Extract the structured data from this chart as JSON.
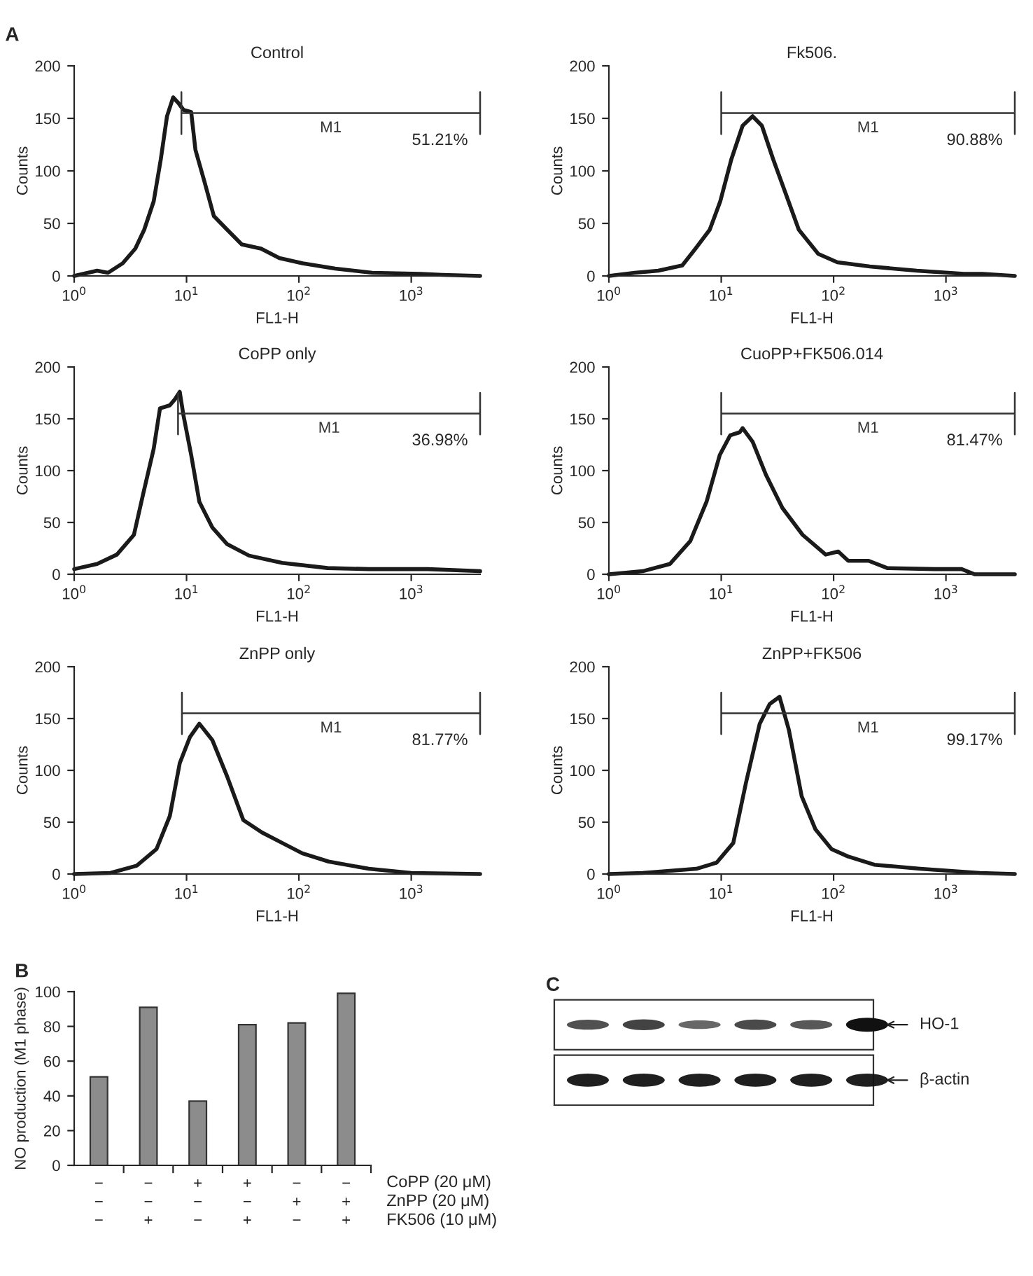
{
  "chart_data": [
    {
      "type": "line",
      "title": "Control",
      "xlabel": "FL1-H",
      "ylabel": "Counts",
      "log": "x",
      "xlim": [
        1,
        4100
      ],
      "xticks": [
        {
          "value": 1,
          "label": "10$^{0}$"
        },
        {
          "value": 10,
          "label": "10$^{1}$"
        },
        {
          "value": 100,
          "label": "10$^{2}$"
        },
        {
          "value": 1000,
          "label": "10$^{3}$"
        }
      ],
      "ylim": [
        0,
        200
      ],
      "yticks": [
        0,
        50,
        100,
        150,
        200
      ],
      "grid": false,
      "marker": "none",
      "line_style": "solid",
      "series": [
        {
          "color": "#1a1a1a",
          "x": [
            1,
            1.6,
            2.0,
            2.7,
            3.5,
            4.2,
            5.1,
            5.9,
            6.7,
            7.6,
            8.4,
            9.4,
            11,
            12,
            14.5,
            17.5,
            23,
            31,
            46,
            67,
            108,
            210,
            450,
            1200,
            1900,
            4100
          ],
          "values": [
            0,
            5,
            3,
            12,
            26,
            44,
            71,
            111,
            152,
            170,
            165,
            158,
            156,
            120,
            89,
            57,
            44,
            30,
            26,
            17,
            12,
            7,
            3,
            2,
            1,
            0
          ]
        },
        {
          "name": "M1",
          "color": "#333333",
          "x": [
            9,
            9,
            9,
            4100,
            4100,
            4100
          ],
          "values": [
            135,
            175,
            155,
            155,
            175,
            135
          ]
        }
      ],
      "annotations": [
        "A",
        "51.21%"
      ]
    },
    {
      "type": "line",
      "title": "Fk506.",
      "xlabel": "FL1-H",
      "ylabel": "Counts",
      "log": "x",
      "xlim": [
        1,
        4100
      ],
      "xticks": [
        {
          "value": 1,
          "label": "10$^{0}$"
        },
        {
          "value": 10,
          "label": "10$^{1}$"
        },
        {
          "value": 100,
          "label": "10$^{2}$"
        },
        {
          "value": 1000,
          "label": "10$^{3}$"
        }
      ],
      "ylim": [
        0,
        200
      ],
      "yticks": [
        0,
        50,
        100,
        150,
        200
      ],
      "grid": false,
      "marker": "none",
      "line_style": "solid",
      "series": [
        {
          "color": "#1a1a1a",
          "x": [
            1,
            1.7,
            2.75,
            4.5,
            5.9,
            7.9,
            9.8,
            12.3,
            15.5,
            19,
            23,
            29,
            37,
            49,
            73,
            108,
            210,
            550,
            1450,
            2100,
            4100
          ],
          "values": [
            0,
            3,
            5,
            10,
            26,
            44,
            71,
            111,
            143,
            152,
            143,
            111,
            80,
            44,
            21,
            13,
            9,
            5,
            2,
            2,
            0
          ]
        },
        {
          "name": "M1",
          "color": "#333333",
          "x": [
            10,
            10,
            10,
            4100,
            4100,
            4100
          ],
          "values": [
            135,
            175,
            155,
            155,
            175,
            135
          ]
        }
      ],
      "annotations": [
        "90.88%"
      ]
    },
    {
      "type": "line",
      "title": "CoPP only",
      "xlabel": "FL1-H",
      "ylabel": "Counts",
      "log": "x",
      "xlim": [
        1,
        4100
      ],
      "xticks": [
        {
          "value": 1,
          "label": "10$^{0}$"
        },
        {
          "value": 10,
          "label": "10$^{1}$"
        },
        {
          "value": 100,
          "label": "10$^{2}$"
        },
        {
          "value": 1000,
          "label": "10$^{3}$"
        }
      ],
      "ylim": [
        0,
        200
      ],
      "yticks": [
        0,
        50,
        100,
        150,
        200
      ],
      "grid": false,
      "marker": "none",
      "line_style": "solid",
      "series": [
        {
          "color": "#1a1a1a",
          "x": [
            1,
            1.6,
            2.4,
            3.4,
            4.1,
            5.1,
            5.8,
            7.1,
            7.9,
            8.7,
            9.4,
            11,
            13,
            17,
            23,
            36,
            71,
            180,
            420,
            1400,
            4100
          ],
          "values": [
            5,
            10,
            19,
            38,
            77,
            121,
            160,
            163,
            169,
            176,
            153,
            115,
            70,
            45,
            29,
            18,
            11,
            6,
            5,
            5,
            3
          ]
        },
        {
          "name": "M1",
          "color": "#333333",
          "x": [
            8.4,
            8.4,
            8.4,
            4100,
            4100,
            4100
          ],
          "values": [
            135,
            175,
            155,
            155,
            175,
            135
          ]
        }
      ],
      "annotations": [
        "36.98%"
      ]
    },
    {
      "type": "line",
      "title": "CuoPP+FK506.014",
      "xlabel": "FL1-H",
      "ylabel": "Counts",
      "log": "x",
      "xlim": [
        1,
        4100
      ],
      "xticks": [
        {
          "value": 1,
          "label": "10$^{0}$"
        },
        {
          "value": 10,
          "label": "10$^{1}$"
        },
        {
          "value": 100,
          "label": "10$^{2}$"
        },
        {
          "value": 1000,
          "label": "10$^{3}$"
        }
      ],
      "ylim": [
        0,
        200
      ],
      "yticks": [
        0,
        50,
        100,
        150,
        200
      ],
      "grid": false,
      "marker": "none",
      "line_style": "solid",
      "series": [
        {
          "color": "#1a1a1a",
          "x": [
            1,
            2.0,
            3.5,
            5.3,
            7.4,
            9.7,
            12,
            14.6,
            15.5,
            19,
            25,
            35,
            53,
            85,
            110,
            135,
            205,
            300,
            790,
            1380,
            1800,
            4100
          ],
          "values": [
            0,
            3,
            10,
            32,
            70,
            115,
            134,
            137,
            141,
            128,
            96,
            64,
            38,
            19,
            22,
            13,
            13,
            6,
            5,
            5,
            0,
            0
          ]
        },
        {
          "name": "M1",
          "color": "#333333",
          "x": [
            10,
            10,
            10,
            4100,
            4100,
            4100
          ],
          "values": [
            135,
            175,
            155,
            155,
            175,
            135
          ]
        }
      ],
      "annotations": [
        "81.47%"
      ]
    },
    {
      "type": "line",
      "title": "ZnPP only",
      "xlabel": "FL1-H",
      "ylabel": "Counts",
      "log": "x",
      "xlim": [
        1,
        4100
      ],
      "xticks": [
        {
          "value": 1,
          "label": "10$^{0}$"
        },
        {
          "value": 10,
          "label": "10$^{1}$"
        },
        {
          "value": 100,
          "label": "10$^{2}$"
        },
        {
          "value": 1000,
          "label": "10$^{3}$"
        }
      ],
      "ylim": [
        0,
        200
      ],
      "yticks": [
        0,
        50,
        100,
        150,
        200
      ],
      "grid": false,
      "marker": "none",
      "line_style": "solid",
      "series": [
        {
          "color": "#1a1a1a",
          "x": [
            1,
            2.1,
            3.6,
            5.4,
            7.1,
            8.7,
            10.7,
            13,
            17,
            23,
            32,
            47,
            71,
            107,
            184,
            420,
            1000,
            4100
          ],
          "values": [
            0,
            1,
            8,
            24,
            56,
            107,
            132,
            145,
            129,
            94,
            52,
            40,
            30,
            20,
            12,
            5,
            1,
            0
          ]
        },
        {
          "name": "M1",
          "color": "#333333",
          "x": [
            9.1,
            9.1,
            9.1,
            4100,
            4100,
            4100
          ],
          "values": [
            135,
            175,
            155,
            155,
            175,
            135
          ]
        }
      ],
      "annotations": [
        "81.77%"
      ]
    },
    {
      "type": "line",
      "title": "ZnPP+FK506",
      "xlabel": "FL1-H",
      "ylabel": "Counts",
      "log": "x",
      "xlim": [
        1,
        4100
      ],
      "xticks": [
        {
          "value": 1,
          "label": "10$^{0}$"
        },
        {
          "value": 10,
          "label": "10$^{1}$"
        },
        {
          "value": 100,
          "label": "10$^{2}$"
        },
        {
          "value": 1000,
          "label": "10$^{3}$"
        }
      ],
      "ylim": [
        0,
        200
      ],
      "yticks": [
        0,
        50,
        100,
        150,
        200
      ],
      "grid": false,
      "marker": "none",
      "line_style": "solid",
      "series": [
        {
          "color": "#1a1a1a",
          "x": [
            1,
            2,
            6,
            9.1,
            12.8,
            16.6,
            22,
            27,
            33,
            40,
            52,
            69,
            96,
            134,
            230,
            590,
            2000,
            4100
          ],
          "values": [
            0,
            1,
            5,
            11,
            30,
            88,
            145,
            164,
            171,
            139,
            75,
            43,
            24,
            17,
            9,
            5,
            1,
            0
          ]
        },
        {
          "name": "M1",
          "color": "#333333",
          "x": [
            10,
            10,
            10,
            4100,
            4100,
            4100
          ],
          "values": [
            135,
            175,
            155,
            155,
            175,
            135
          ]
        }
      ],
      "annotations": [
        "99.17%"
      ]
    },
    {
      "type": "bar",
      "ylabel": "NO production (M1 phase)",
      "categories": [
        "−\n−\n−",
        "−\n−\n+",
        "+\n−\n−",
        "+\n−\n+",
        "−\n+\n−",
        "−\n+\n+"
      ],
      "values": [
        51,
        91,
        37,
        81,
        82,
        99
      ],
      "color": "#8c8c8c",
      "ylim": [
        0,
        100
      ],
      "yticks": [
        0,
        20,
        40,
        60,
        80,
        100
      ],
      "grid": false,
      "annotations": [
        "B",
        "CoPP (20 μM)",
        "ZnPP (20 μM)",
        "FK506 (10 μM)"
      ]
    },
    {
      "type": "other",
      "annotations": [
        "C",
        "HO-1",
        "β-actin"
      ]
    }
  ]
}
